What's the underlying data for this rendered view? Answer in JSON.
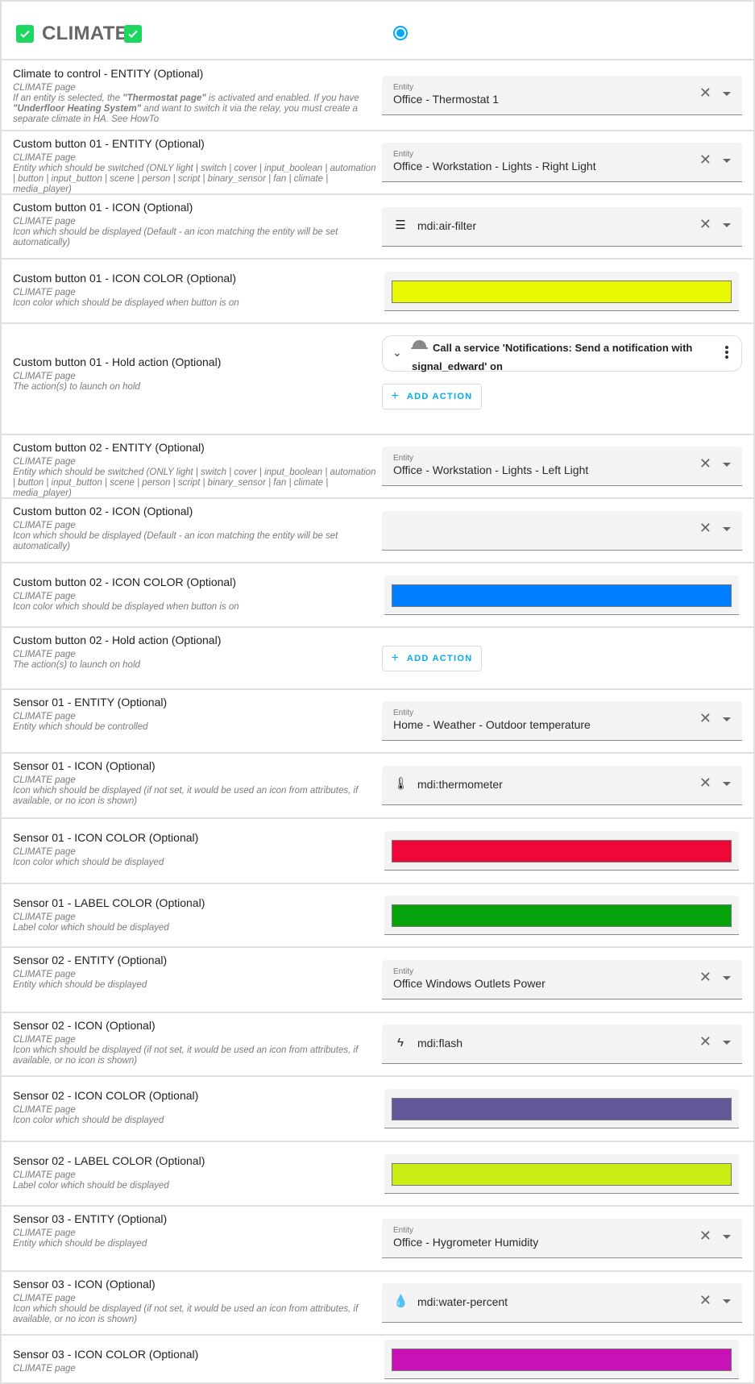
{
  "header": {
    "title": "CLIMATE",
    "radio_selected": true,
    "check_color": "#1ed760",
    "accent": "#03a9f4"
  },
  "rows": [
    {
      "title": "Climate to control - ENTITY (Optional)",
      "page": "CLIMATE page",
      "desc_parts": [
        "If an entity is selected, the ",
        "\"Thermostat page\"",
        " is activated and enabled. If you have ",
        "\"Underfloor Heating System\"",
        " and want to switch it via the relay, you must create a separate climate in HA. See HowTo"
      ],
      "type": "entity",
      "label": "Entity",
      "value": "Office - Thermostat 1"
    },
    {
      "title": "Custom button 01 - ENTITY (Optional)",
      "page": "CLIMATE page",
      "desc": "Entity which should be switched (ONLY light | switch | cover | input_boolean | automation | button | input_button | scene | person | script | binary_sensor | fan | climate | media_player)",
      "type": "entity",
      "label": "Entity",
      "value": "Office - Workstation - Lights - Right Light"
    },
    {
      "title": "Custom button 01 - ICON (Optional)",
      "page": "CLIMATE page",
      "desc": "Icon which should be displayed (Default - an icon matching the entity will be set automatically)",
      "type": "icon",
      "icon": "air-filter-icon",
      "value": "mdi:air-filter"
    },
    {
      "title": "Custom button 01 - ICON COLOR (Optional)",
      "page": "CLIMATE page",
      "desc": "Icon color which should be displayed when button is on",
      "type": "color",
      "color": "#e8f800"
    },
    {
      "title": "Custom button 01 - Hold action (Optional)",
      "page": "CLIMATE page",
      "desc": "The action(s) to launch on hold",
      "type": "action",
      "action": "Call a service 'Notifications: Send a notification with signal_edward' on",
      "add_label": "ADD ACTION"
    },
    {
      "title": "Custom button 02 - ENTITY (Optional)",
      "page": "CLIMATE page",
      "desc": "Entity which should be switched (ONLY light | switch | cover | input_boolean | automation | button | input_button | scene | person | script | binary_sensor | fan | climate | media_player)",
      "type": "entity",
      "label": "Entity",
      "value": "Office - Workstation - Lights - Left Light"
    },
    {
      "title": "Custom button 02 - ICON (Optional)",
      "page": "CLIMATE page",
      "desc": "Icon which should be displayed (Default - an icon matching the entity will be set automatically)",
      "type": "icon",
      "value": ""
    },
    {
      "title": "Custom button 02 - ICON COLOR (Optional)",
      "page": "CLIMATE page",
      "desc": "Icon color which should be displayed when button is on",
      "type": "color",
      "color": "#0080ff"
    },
    {
      "title": "Custom button 02 - Hold action (Optional)",
      "page": "CLIMATE page",
      "desc": "The action(s) to launch on hold",
      "type": "addonly",
      "add_label": "ADD ACTION"
    },
    {
      "title": "Sensor 01 - ENTITY (Optional)",
      "page": "CLIMATE page",
      "desc": "Entity which should be controlled",
      "type": "entity",
      "label": "Entity",
      "value": "Home - Weather - Outdoor temperature"
    },
    {
      "title": "Sensor 01 - ICON (Optional)",
      "page": "CLIMATE page",
      "desc": "Icon which should be displayed (if not set, it would be used an icon from attributes, if available, or no icon is shown)",
      "type": "icon",
      "icon": "thermometer-icon",
      "value": "mdi:thermometer"
    },
    {
      "title": "Sensor 01 - ICON COLOR (Optional)",
      "page": "CLIMATE page",
      "desc": "Icon color which should be displayed",
      "type": "color",
      "color": "#ee0737"
    },
    {
      "title": "Sensor 01 - LABEL COLOR (Optional)",
      "page": "CLIMATE page",
      "desc": "Label color which should be displayed",
      "type": "color",
      "color": "#05a30a"
    },
    {
      "title": "Sensor 02 - ENTITY (Optional)",
      "page": "CLIMATE page",
      "desc": "Entity which should be displayed",
      "type": "entity",
      "label": "Entity",
      "value": "Office Windows Outlets Power"
    },
    {
      "title": "Sensor 02 - ICON (Optional)",
      "page": "CLIMATE page",
      "desc": "Icon which should be displayed (if not set, it would be used an icon from attributes, if available, or no icon is shown)",
      "type": "icon",
      "icon": "flash-icon",
      "value": "mdi:flash"
    },
    {
      "title": "Sensor 02 - ICON COLOR (Optional)",
      "page": "CLIMATE page",
      "desc": "Icon color which should be displayed",
      "type": "color",
      "color": "#635899"
    },
    {
      "title": "Sensor 02 - LABEL COLOR (Optional)",
      "page": "CLIMATE page",
      "desc": "Label color which should be displayed",
      "type": "color",
      "color": "#cbed15"
    },
    {
      "title": "Sensor 03 - ENTITY (Optional)",
      "page": "CLIMATE page",
      "desc": "Entity which should be displayed",
      "type": "entity",
      "label": "Entity",
      "value": "Office - Hygrometer Humidity"
    },
    {
      "title": "Sensor 03 - ICON (Optional)",
      "page": "CLIMATE page",
      "desc": "Icon which should be displayed (if not set, it would be used an icon from attributes, if available, or no icon is shown)",
      "type": "icon",
      "icon": "water-percent-icon",
      "value": "mdi:water-percent"
    },
    {
      "title": "Sensor 03 - ICON COLOR (Optional)",
      "page": "CLIMATE page",
      "desc": "",
      "type": "color",
      "color": "#c812b8"
    }
  ]
}
